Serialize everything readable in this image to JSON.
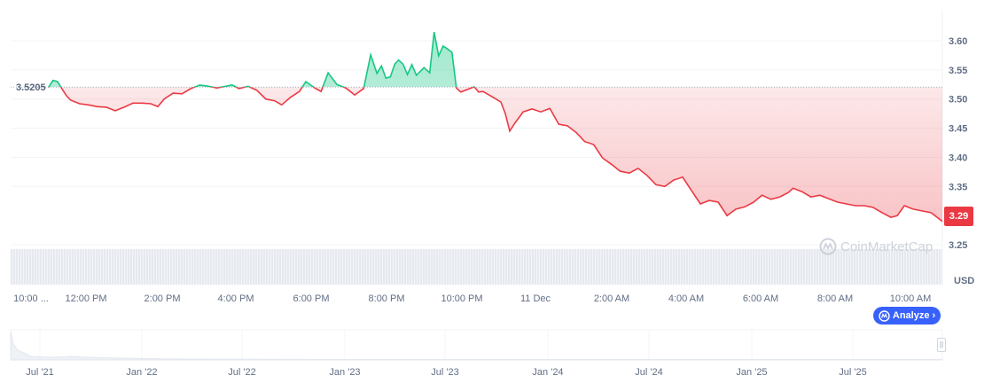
{
  "chart_data": {
    "type": "area",
    "currency": "USD",
    "baseline": 3.5205,
    "baseline_label": "3.5205",
    "current_price_label": "3.29",
    "colors": {
      "up": "#16c784",
      "down": "#ea3943",
      "accent": "#3861fb"
    },
    "ylim": [
      3.22,
      3.65
    ],
    "y_ticks": [
      "3.60",
      "3.55",
      "3.50",
      "3.45",
      "3.40",
      "3.35",
      "3.25"
    ],
    "x_ticks": [
      "10:00 ...",
      "12:00 PM",
      "2:00 PM",
      "4:00 PM",
      "6:00 PM",
      "8:00 PM",
      "10:00 PM",
      "11 Dec",
      "2:00 AM",
      "4:00 AM",
      "6:00 AM",
      "8:00 AM",
      "10:00 AM"
    ],
    "grid": true,
    "points": [
      [
        "Dec 10 11:01",
        3.52
      ],
      [
        "Dec 10 11:08",
        3.532
      ],
      [
        "Dec 10 11:15",
        3.53
      ],
      [
        "Dec 10 11:22",
        3.518
      ],
      [
        "Dec 10 11:29",
        3.506
      ],
      [
        "Dec 10 11:36",
        3.498
      ],
      [
        "Dec 10 11:50",
        3.492
      ],
      [
        "Dec 10 12:04",
        3.49
      ],
      [
        "Dec 10 12:18",
        3.487
      ],
      [
        "Dec 10 12:32",
        3.486
      ],
      [
        "Dec 10 12:46",
        3.48
      ],
      [
        "Dec 10 13:00",
        3.486
      ],
      [
        "Dec 10 13:14",
        3.493
      ],
      [
        "Dec 10 13:28",
        3.493
      ],
      [
        "Dec 10 13:42",
        3.492
      ],
      [
        "Dec 10 13:53",
        3.487
      ],
      [
        "Dec 10 14:03",
        3.5
      ],
      [
        "Dec 10 14:17",
        3.51
      ],
      [
        "Dec 10 14:31",
        3.509
      ],
      [
        "Dec 10 14:45",
        3.518
      ],
      [
        "Dec 10 14:59",
        3.524
      ],
      [
        "Dec 10 15:13",
        3.522
      ],
      [
        "Dec 10 15:26",
        3.519
      ],
      [
        "Dec 10 15:40",
        3.522
      ],
      [
        "Dec 10 15:50",
        3.524
      ],
      [
        "Dec 10 16:01",
        3.518
      ],
      [
        "Dec 10 16:15",
        3.522
      ],
      [
        "Dec 10 16:29",
        3.515
      ],
      [
        "Dec 10 16:43",
        3.5
      ],
      [
        "Dec 10 16:57",
        3.497
      ],
      [
        "Dec 10 17:08",
        3.49
      ],
      [
        "Dec 10 17:22",
        3.503
      ],
      [
        "Dec 10 17:36",
        3.513
      ],
      [
        "Dec 10 17:46",
        3.53
      ],
      [
        "Dec 10 18:00",
        3.519
      ],
      [
        "Dec 10 18:10",
        3.513
      ],
      [
        "Dec 10 18:21",
        3.545
      ],
      [
        "Dec 10 18:35",
        3.525
      ],
      [
        "Dec 10 18:49",
        3.519
      ],
      [
        "Dec 10 19:03",
        3.507
      ],
      [
        "Dec 10 19:17",
        3.518
      ],
      [
        "Dec 10 19:28",
        3.576
      ],
      [
        "Dec 10 19:38",
        3.544
      ],
      [
        "Dec 10 19:45",
        3.557
      ],
      [
        "Dec 10 19:52",
        3.536
      ],
      [
        "Dec 10 19:59",
        3.538
      ],
      [
        "Dec 10 20:06",
        3.56
      ],
      [
        "Dec 10 20:12",
        3.567
      ],
      [
        "Dec 10 20:19",
        3.56
      ],
      [
        "Dec 10 20:26",
        3.542
      ],
      [
        "Dec 10 20:33",
        3.559
      ],
      [
        "Dec 10 20:40",
        3.541
      ],
      [
        "Dec 10 20:52",
        3.554
      ],
      [
        "Dec 10 21:01",
        3.545
      ],
      [
        "Dec 10 21:08",
        3.615
      ],
      [
        "Dec 10 21:15",
        3.574
      ],
      [
        "Dec 10 21:22",
        3.591
      ],
      [
        "Dec 10 21:29",
        3.586
      ],
      [
        "Dec 10 21:36",
        3.58
      ],
      [
        "Dec 10 21:43",
        3.519
      ],
      [
        "Dec 10 21:50",
        3.512
      ],
      [
        "Dec 10 22:04",
        3.518
      ],
      [
        "Dec 10 22:11",
        3.521
      ],
      [
        "Dec 10 22:18",
        3.512
      ],
      [
        "Dec 10 22:25",
        3.513
      ],
      [
        "Dec 10 22:39",
        3.504
      ],
      [
        "Dec 10 22:53",
        3.495
      ],
      [
        "Dec 10 23:00",
        3.475
      ],
      [
        "Dec 10 23:07",
        3.445
      ],
      [
        "Dec 10 23:14",
        3.457
      ],
      [
        "Dec 10 23:28",
        3.478
      ],
      [
        "Dec 10 23:42",
        3.483
      ],
      [
        "Dec 10 23:56",
        3.478
      ],
      [
        "Dec 11 00:10",
        3.484
      ],
      [
        "Dec 11 00:24",
        3.457
      ],
      [
        "Dec 11 00:38",
        3.454
      ],
      [
        "Dec 11 00:52",
        3.442
      ],
      [
        "Dec 11 01:05",
        3.427
      ],
      [
        "Dec 11 01:19",
        3.422
      ],
      [
        "Dec 11 01:33",
        3.399
      ],
      [
        "Dec 11 01:47",
        3.388
      ],
      [
        "Dec 11 02:01",
        3.376
      ],
      [
        "Dec 11 02:15",
        3.373
      ],
      [
        "Dec 11 02:29",
        3.381
      ],
      [
        "Dec 11 02:43",
        3.369
      ],
      [
        "Dec 11 02:57",
        3.353
      ],
      [
        "Dec 11 03:11",
        3.35
      ],
      [
        "Dec 11 03:25",
        3.361
      ],
      [
        "Dec 11 03:39",
        3.366
      ],
      [
        "Dec 11 03:53",
        3.343
      ],
      [
        "Dec 11 04:07",
        3.32
      ],
      [
        "Dec 11 04:21",
        3.326
      ],
      [
        "Dec 11 04:35",
        3.323
      ],
      [
        "Dec 11 04:49",
        3.3
      ],
      [
        "Dec 11 05:03",
        3.311
      ],
      [
        "Dec 11 05:17",
        3.315
      ],
      [
        "Dec 11 05:31",
        3.323
      ],
      [
        "Dec 11 05:44",
        3.335
      ],
      [
        "Dec 11 05:58",
        3.328
      ],
      [
        "Dec 11 06:12",
        3.332
      ],
      [
        "Dec 11 06:26",
        3.34
      ],
      [
        "Dec 11 06:33",
        3.347
      ],
      [
        "Dec 11 06:47",
        3.341
      ],
      [
        "Dec 11 07:01",
        3.332
      ],
      [
        "Dec 11 07:15",
        3.335
      ],
      [
        "Dec 11 07:29",
        3.329
      ],
      [
        "Dec 11 07:43",
        3.323
      ],
      [
        "Dec 11 07:57",
        3.32
      ],
      [
        "Dec 11 08:11",
        3.317
      ],
      [
        "Dec 11 08:25",
        3.317
      ],
      [
        "Dec 11 08:39",
        3.314
      ],
      [
        "Dec 11 08:53",
        3.305
      ],
      [
        "Dec 11 09:07",
        3.297
      ],
      [
        "Dec 11 09:17",
        3.3
      ],
      [
        "Dec 11 09:28",
        3.317
      ],
      [
        "Dec 11 09:42",
        3.311
      ],
      [
        "Dec 11 09:56",
        3.308
      ],
      [
        "Dec 11 10:10",
        3.305
      ],
      [
        "Dec 11 10:28",
        3.29
      ]
    ],
    "navigator": {
      "x_ticks": [
        "Jul '21",
        "Jan '22",
        "Jul '22",
        "Jan '23",
        "Jul '23",
        "Jan '24",
        "Jul '24",
        "Jan '25",
        "Jul '25"
      ]
    }
  },
  "ui": {
    "usd_label": "USD",
    "analyze_label": "Analyze",
    "watermark": "CoinMarketCap",
    "icons": {
      "analyze": "analyze-logo-icon",
      "chevron": "chevron-right-icon",
      "handle": "drag-handle-icon"
    }
  }
}
